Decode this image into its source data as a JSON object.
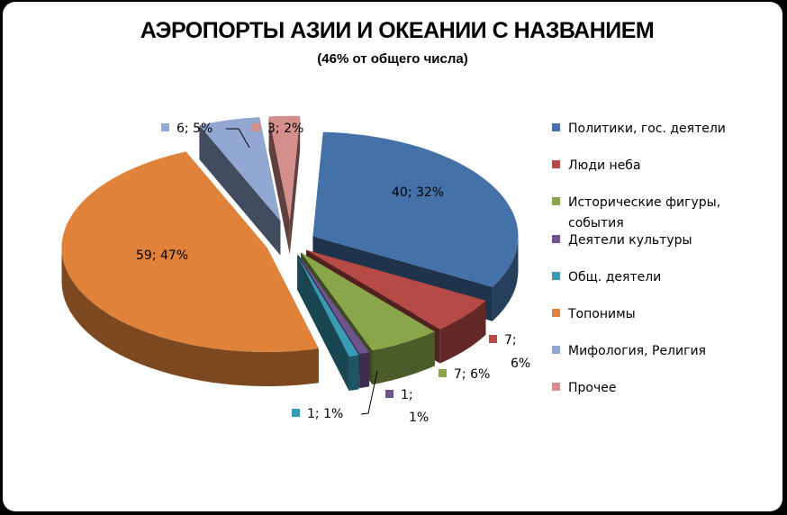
{
  "chart_data": {
    "type": "pie",
    "title": "АЭРОПОРТЫ АЗИИ И ОКЕАНИИ С НАЗВАНИЕМ",
    "subtitle": "(46% от общего числа)",
    "legend_position": "right",
    "slices": [
      {
        "name": "Политики, гос. деятели",
        "value": 40,
        "percent": 32,
        "label": "40; 32%",
        "color": "#4472a8"
      },
      {
        "name": "Люди неба",
        "value": 7,
        "percent": 6,
        "label": "7;",
        "label2": "6%",
        "color": "#b54a47"
      },
      {
        "name": "Исторические фигуры, события",
        "name_line1": "Исторические фигуры,",
        "name_line2": "события",
        "value": 7,
        "percent": 6,
        "label": "7; 6%",
        "color": "#89a64a"
      },
      {
        "name": "Деятели культуры",
        "value": 1,
        "percent": 1,
        "label": "1;",
        "label2": "1%",
        "color": "#6f538f"
      },
      {
        "name": "Общ. деятели",
        "value": 1,
        "percent": 1,
        "label": "1; 1%",
        "color": "#3a9bb5"
      },
      {
        "name": "Топонимы",
        "value": 59,
        "percent": 47,
        "label": "59; 47%",
        "color": "#e0823a"
      },
      {
        "name": "Мифология, Религия",
        "value": 6,
        "percent": 5,
        "label": "6; 5%",
        "color": "#92a8d3"
      },
      {
        "name": "Прочее",
        "value": 3,
        "percent": 2,
        "label": "3; 2%",
        "color": "#d48f8d"
      }
    ]
  }
}
